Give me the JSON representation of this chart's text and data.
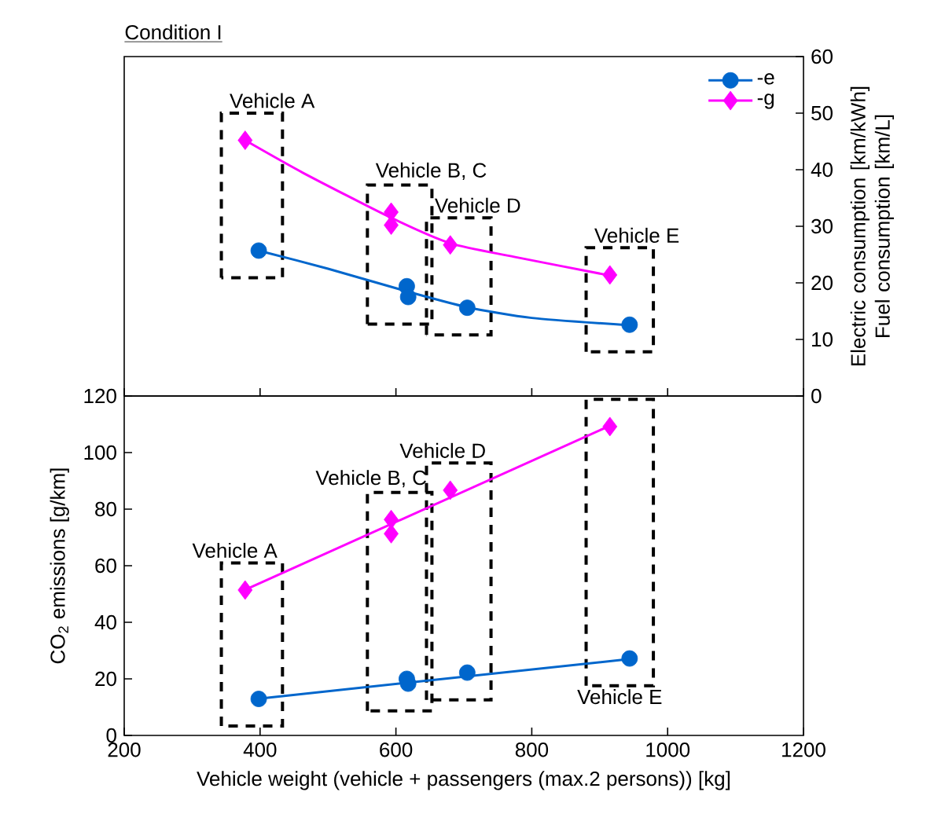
{
  "chart_data": [
    {
      "type": "scatter",
      "title": "Condition I",
      "y2label": "Electric consumption [km/kWh] Fuel consumption [km/L]",
      "xlim": [
        200,
        1200
      ],
      "xticks": [
        200,
        400,
        600,
        800,
        1000,
        1200
      ],
      "y2lim": [
        0,
        60
      ],
      "y2ticks": [
        0,
        10,
        20,
        30,
        40,
        50,
        60
      ],
      "tick_labels": "y",
      "legend": "top right",
      "annotations": [
        "Vehicle A",
        "Vehicle B, C",
        "Vehicle D",
        "Vehicle E"
      ],
      "series": [
        {
          "name": "-e",
          "marker": "circle",
          "color": "#0066cc",
          "axis": "y2",
          "x": [
            398,
            616,
            618,
            705,
            944
          ],
          "values": [
            25.7,
            19.4,
            17.5,
            15.6,
            12.6
          ]
        },
        {
          "name": "-g",
          "marker": "diamond",
          "color": "#ff00ff",
          "axis": "y2",
          "x": [
            378,
            593,
            593,
            680,
            915
          ],
          "values": [
            45.2,
            32.5,
            30.2,
            26.7,
            21.4
          ]
        },
        {
          "type": "line",
          "marker": "none",
          "color": "#0066cc",
          "axis": "y2",
          "x": [
            398,
            500,
            616,
            705,
            800,
            944
          ],
          "values": [
            25.7,
            22.5,
            18.5,
            15.7,
            13.8,
            12.5
          ]
        },
        {
          "type": "line",
          "marker": "none",
          "color": "#ff00ff",
          "axis": "y2",
          "x": [
            378,
            464,
            593,
            680,
            774,
            915
          ],
          "values": [
            45.2,
            39.4,
            31.5,
            27.0,
            24.6,
            21.3
          ]
        }
      ]
    },
    {
      "type": "scatter",
      "xlabel": "Vehicle weight (vehicle + passengers (max.2 persons)) [kg]",
      "ylabel": "CO$_{2}$ emissions [g/km]",
      "xlim": [
        200,
        1200
      ],
      "xticks": [
        200,
        400,
        600,
        800,
        1000,
        1200
      ],
      "ylim": [
        0,
        120
      ],
      "yticks": [
        0,
        20,
        40,
        60,
        80,
        100,
        120
      ],
      "annotations": [
        "Vehicle A",
        "Vehicle B, C",
        "Vehicle D",
        "Vehicle E"
      ],
      "series": [
        {
          "marker": "circle",
          "color": "#0066cc",
          "x": [
            398,
            616,
            618,
            705,
            944
          ],
          "values": [
            12.9,
            20.0,
            18.3,
            22.2,
            27.2
          ]
        },
        {
          "marker": "diamond",
          "color": "#ff00ff",
          "x": [
            378,
            593,
            593,
            680,
            915
          ],
          "values": [
            51.4,
            76.3,
            71.3,
            86.7,
            109.2
          ]
        },
        {
          "type": "line",
          "marker": "none",
          "color": "#0066cc",
          "x": [
            398,
            944
          ],
          "values": [
            13.0,
            27.0
          ]
        },
        {
          "type": "line",
          "marker": "none",
          "color": "#ff00ff",
          "x": [
            378,
            915
          ],
          "values": [
            51.5,
            109.5
          ]
        }
      ]
    }
  ]
}
